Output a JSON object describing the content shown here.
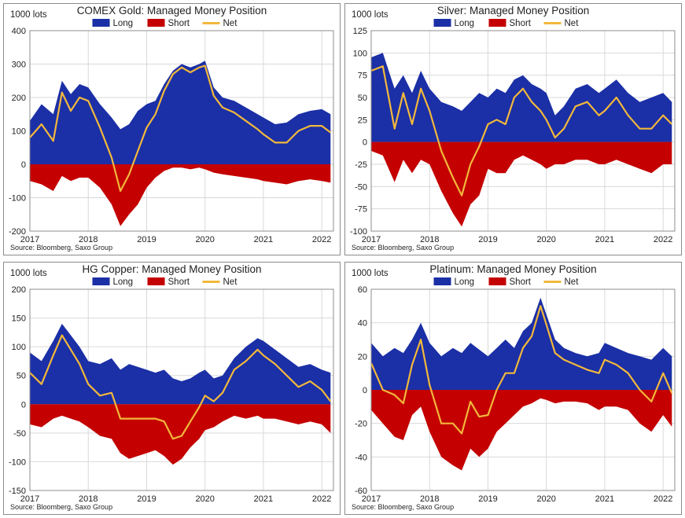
{
  "source_label": "Source:  Bloomberg,  Saxo Group",
  "colors": {
    "long": "#1b2fa6",
    "short": "#c40000",
    "net": "#f2b83c",
    "grid": "#d9d9d9",
    "frame": "#8c8c8c",
    "text": "#222222"
  },
  "chart_data": [
    {
      "type": "area",
      "title": "COMEX Gold: Managed Money Position",
      "unit_label": "1000 lots",
      "legend": [
        "Long",
        "Short",
        "Net"
      ],
      "legend_position": "top-center",
      "grid": true,
      "ylim": [
        -200,
        400
      ],
      "yticks": [
        -200,
        -100,
        0,
        100,
        200,
        300,
        400
      ],
      "xlim": [
        2017.0,
        2022.2
      ],
      "xticks": [
        2017,
        2018,
        2019,
        2020,
        2021,
        2022
      ],
      "x": [
        2017.0,
        2017.2,
        2017.4,
        2017.55,
        2017.7,
        2017.85,
        2018.0,
        2018.2,
        2018.4,
        2018.55,
        2018.7,
        2018.85,
        2019.0,
        2019.15,
        2019.3,
        2019.45,
        2019.6,
        2019.75,
        2019.9,
        2020.0,
        2020.15,
        2020.3,
        2020.5,
        2020.7,
        2020.9,
        2021.0,
        2021.2,
        2021.4,
        2021.6,
        2021.8,
        2022.0,
        2022.15
      ],
      "series": [
        {
          "name": "Long",
          "values": [
            130,
            180,
            150,
            250,
            210,
            240,
            230,
            180,
            140,
            105,
            120,
            160,
            180,
            190,
            240,
            280,
            300,
            290,
            300,
            310,
            230,
            200,
            190,
            170,
            150,
            140,
            120,
            125,
            150,
            160,
            165,
            150
          ]
        },
        {
          "name": "Short",
          "values": [
            -50,
            -60,
            -80,
            -35,
            -50,
            -40,
            -40,
            -70,
            -120,
            -185,
            -150,
            -120,
            -70,
            -40,
            -20,
            -10,
            -10,
            -15,
            -10,
            -15,
            -25,
            -30,
            -35,
            -40,
            -45,
            -50,
            -55,
            -60,
            -50,
            -45,
            -50,
            -55
          ]
        },
        {
          "name": "Net",
          "values": [
            80,
            120,
            70,
            215,
            160,
            200,
            190,
            110,
            20,
            -80,
            -30,
            40,
            110,
            150,
            220,
            270,
            290,
            275,
            290,
            295,
            205,
            170,
            155,
            130,
            105,
            90,
            65,
            65,
            100,
            115,
            115,
            95
          ]
        }
      ]
    },
    {
      "type": "area",
      "title": "Silver: Managed Money Position",
      "unit_label": "1000 lots",
      "legend": [
        "Long",
        "Short",
        "Net"
      ],
      "legend_position": "top-center",
      "grid": true,
      "ylim": [
        -100,
        125
      ],
      "yticks": [
        -100,
        -75,
        -50,
        -25,
        0,
        25,
        50,
        75,
        100,
        125
      ],
      "xlim": [
        2017.0,
        2022.2
      ],
      "xticks": [
        2017,
        2018,
        2019,
        2020,
        2021,
        2022
      ],
      "x": [
        2017.0,
        2017.2,
        2017.4,
        2017.55,
        2017.7,
        2017.85,
        2018.0,
        2018.2,
        2018.4,
        2018.55,
        2018.7,
        2018.85,
        2019.0,
        2019.15,
        2019.3,
        2019.45,
        2019.6,
        2019.75,
        2019.9,
        2020.0,
        2020.15,
        2020.3,
        2020.5,
        2020.7,
        2020.9,
        2021.0,
        2021.2,
        2021.4,
        2021.6,
        2021.8,
        2022.0,
        2022.15
      ],
      "series": [
        {
          "name": "Long",
          "values": [
            95,
            100,
            60,
            75,
            55,
            80,
            60,
            45,
            40,
            35,
            45,
            55,
            50,
            60,
            55,
            70,
            75,
            65,
            60,
            55,
            30,
            40,
            60,
            65,
            55,
            60,
            70,
            55,
            45,
            50,
            55,
            45
          ]
        },
        {
          "name": "Short",
          "values": [
            -10,
            -15,
            -45,
            -20,
            -35,
            -20,
            -25,
            -55,
            -80,
            -95,
            -70,
            -60,
            -30,
            -35,
            -35,
            -20,
            -15,
            -20,
            -25,
            -30,
            -25,
            -25,
            -20,
            -20,
            -25,
            -25,
            -20,
            -25,
            -30,
            -35,
            -25,
            -25
          ]
        },
        {
          "name": "Net",
          "values": [
            80,
            85,
            15,
            55,
            20,
            60,
            35,
            -10,
            -40,
            -60,
            -25,
            -5,
            20,
            25,
            20,
            50,
            60,
            45,
            35,
            25,
            5,
            15,
            40,
            45,
            30,
            35,
            50,
            30,
            15,
            15,
            30,
            20
          ]
        }
      ]
    },
    {
      "type": "area",
      "title": "HG Copper: Managed Money Position",
      "unit_label": "1000 lots",
      "legend": [
        "Long",
        "Short",
        "Net"
      ],
      "legend_position": "top-center",
      "grid": true,
      "ylim": [
        -150,
        200
      ],
      "yticks": [
        -150,
        -100,
        -50,
        0,
        50,
        100,
        150,
        200
      ],
      "xlim": [
        2017.0,
        2022.2
      ],
      "xticks": [
        2017,
        2018,
        2019,
        2020,
        2021,
        2022
      ],
      "x": [
        2017.0,
        2017.2,
        2017.4,
        2017.55,
        2017.7,
        2017.85,
        2018.0,
        2018.2,
        2018.4,
        2018.55,
        2018.7,
        2018.85,
        2019.0,
        2019.15,
        2019.3,
        2019.45,
        2019.6,
        2019.75,
        2019.9,
        2020.0,
        2020.15,
        2020.3,
        2020.5,
        2020.7,
        2020.9,
        2021.0,
        2021.2,
        2021.4,
        2021.6,
        2021.8,
        2022.0,
        2022.15
      ],
      "series": [
        {
          "name": "Long",
          "values": [
            90,
            75,
            110,
            140,
            120,
            100,
            75,
            70,
            80,
            60,
            70,
            65,
            60,
            55,
            60,
            45,
            40,
            45,
            55,
            60,
            45,
            50,
            80,
            100,
            115,
            110,
            95,
            80,
            65,
            70,
            60,
            55
          ]
        },
        {
          "name": "Short",
          "values": [
            -35,
            -40,
            -25,
            -20,
            -25,
            -30,
            -40,
            -55,
            -60,
            -85,
            -95,
            -90,
            -85,
            -80,
            -90,
            -105,
            -95,
            -75,
            -60,
            -45,
            -40,
            -30,
            -20,
            -25,
            -20,
            -25,
            -25,
            -30,
            -35,
            -30,
            -35,
            -50
          ]
        },
        {
          "name": "Net",
          "values": [
            55,
            35,
            85,
            120,
            95,
            70,
            35,
            15,
            20,
            -25,
            -25,
            -25,
            -25,
            -25,
            -30,
            -60,
            -55,
            -30,
            -5,
            15,
            5,
            20,
            60,
            75,
            95,
            85,
            70,
            50,
            30,
            40,
            25,
            5
          ]
        }
      ]
    },
    {
      "type": "area",
      "title": "Platinum: Managed Money Position",
      "unit_label": "1000 lots",
      "legend": [
        "Long",
        "Short",
        "Net"
      ],
      "legend_position": "top-center",
      "grid": true,
      "ylim": [
        -60,
        60
      ],
      "yticks": [
        -60,
        -40,
        -20,
        0,
        20,
        40,
        60
      ],
      "xlim": [
        2017.0,
        2022.2
      ],
      "xticks": [
        2017,
        2018,
        2019,
        2020,
        2021,
        2022
      ],
      "x": [
        2017.0,
        2017.2,
        2017.4,
        2017.55,
        2017.7,
        2017.85,
        2018.0,
        2018.2,
        2018.4,
        2018.55,
        2018.7,
        2018.85,
        2019.0,
        2019.15,
        2019.3,
        2019.45,
        2019.6,
        2019.75,
        2019.9,
        2020.0,
        2020.15,
        2020.3,
        2020.5,
        2020.7,
        2020.9,
        2021.0,
        2021.2,
        2021.4,
        2021.6,
        2021.8,
        2022.0,
        2022.15
      ],
      "series": [
        {
          "name": "Long",
          "values": [
            28,
            20,
            25,
            22,
            30,
            40,
            28,
            20,
            25,
            22,
            28,
            24,
            20,
            25,
            30,
            25,
            35,
            40,
            55,
            45,
            30,
            25,
            22,
            20,
            22,
            28,
            25,
            22,
            20,
            18,
            25,
            20
          ]
        },
        {
          "name": "Short",
          "values": [
            -12,
            -20,
            -28,
            -30,
            -15,
            -10,
            -25,
            -40,
            -45,
            -48,
            -35,
            -40,
            -35,
            -25,
            -20,
            -15,
            -10,
            -8,
            -5,
            -6,
            -8,
            -7,
            -7,
            -8,
            -12,
            -10,
            -10,
            -12,
            -20,
            -25,
            -15,
            -22
          ]
        },
        {
          "name": "Net",
          "values": [
            16,
            0,
            -3,
            -8,
            15,
            30,
            3,
            -20,
            -20,
            -26,
            -7,
            -16,
            -15,
            0,
            10,
            10,
            25,
            32,
            50,
            39,
            22,
            18,
            15,
            12,
            10,
            18,
            15,
            10,
            0,
            -7,
            10,
            -2
          ]
        }
      ]
    }
  ]
}
